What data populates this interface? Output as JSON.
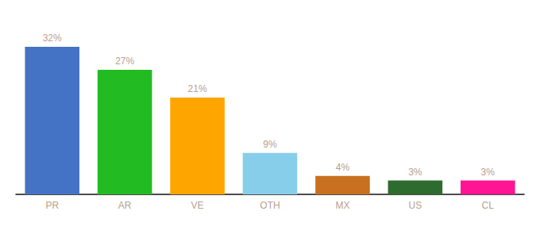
{
  "chart_data": {
    "type": "bar",
    "categories": [
      "PR",
      "AR",
      "VE",
      "OTH",
      "MX",
      "US",
      "CL"
    ],
    "values": [
      32,
      27,
      21,
      9,
      4,
      3,
      3
    ],
    "value_labels": [
      "32%",
      "27%",
      "21%",
      "9%",
      "4%",
      "3%",
      "3%"
    ],
    "colors": [
      "#4472C4",
      "#22BB22",
      "#FFA500",
      "#87CEEB",
      "#C87020",
      "#2E6B2E",
      "#FF1493"
    ],
    "ylim": [
      0,
      37
    ],
    "grid": false,
    "data_labels": true,
    "tick_labels": "x"
  }
}
